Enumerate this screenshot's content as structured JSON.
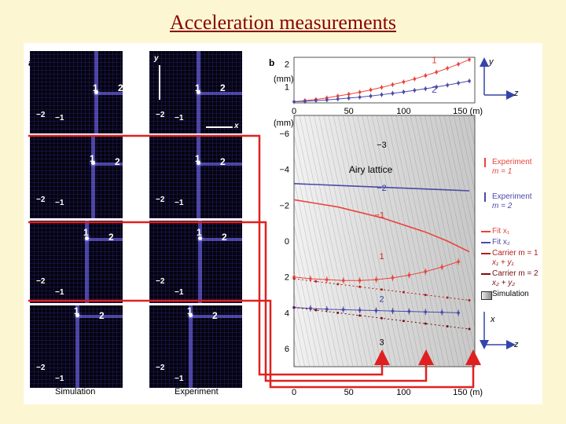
{
  "slide": {
    "title": "Acceleration measurements"
  },
  "panel_a": {
    "label": "a",
    "col_labels": [
      "Simulation",
      "Experiment"
    ],
    "axis_y": "y",
    "axis_x": "x",
    "orders": [
      "1",
      "2",
      "−2",
      "−1"
    ]
  },
  "panel_b": {
    "label": "b",
    "top_ylabel_unit": "(mm)",
    "top_yticks": [
      "2",
      "1"
    ],
    "top_xticks": [
      "0",
      "50",
      "100",
      "150 (m)"
    ],
    "main_ylabel_unit": "(mm)",
    "main_yticks": [
      "−6",
      "−4",
      "−2",
      "0",
      "2",
      "4",
      "6"
    ],
    "main_xticks": [
      "0",
      "50",
      "100",
      "150 (m)"
    ],
    "inside_labels": [
      "−3",
      "Airy lattice",
      "−2",
      "−1",
      "1",
      "2",
      "3"
    ],
    "top_series_labels": [
      "1",
      "2"
    ],
    "axis_icons": {
      "top_y": "y",
      "top_z": "z",
      "main_x": "x",
      "main_z": "z"
    }
  },
  "legend": [
    {
      "line1": "Experiment",
      "line2": "m = 1",
      "color": "#e8453c"
    },
    {
      "line1": "Experiment",
      "line2": "m = 2",
      "color": "#4a4aa8"
    },
    {
      "line1": "Fit x₁",
      "line2": "",
      "color": "#e8453c"
    },
    {
      "line1": "Fit x₂",
      "line2": "",
      "color": "#4a4aa8"
    },
    {
      "line1": "Carrier m = 1",
      "line2": "x₁ + y₁",
      "color": "#b0201a"
    },
    {
      "line1": "Carrier m = 2",
      "line2": "x₂ + y₂",
      "color": "#7a1010"
    },
    {
      "line1": "Simulation",
      "line2": "",
      "color": "#888888"
    }
  ],
  "chart_data": [
    {
      "type": "scatter",
      "title": "",
      "xlabel": "(m)",
      "ylabel": "(mm)",
      "xlim": [
        0,
        165
      ],
      "ylim": [
        0.3,
        2.3
      ],
      "series": [
        {
          "name": "1",
          "x": [
            0,
            10,
            20,
            30,
            40,
            50,
            60,
            70,
            80,
            90,
            100,
            110,
            120,
            130,
            140,
            150,
            160
          ],
          "y": [
            0.35,
            0.4,
            0.45,
            0.52,
            0.6,
            0.68,
            0.77,
            0.87,
            0.98,
            1.1,
            1.22,
            1.35,
            1.5,
            1.65,
            1.82,
            2.0,
            2.2
          ],
          "color": "#e8453c"
        },
        {
          "name": "2",
          "x": [
            0,
            10,
            20,
            30,
            40,
            50,
            60,
            70,
            80,
            90,
            100,
            110,
            120,
            130,
            140,
            150,
            160
          ],
          "y": [
            0.35,
            0.37,
            0.4,
            0.43,
            0.47,
            0.51,
            0.55,
            0.6,
            0.66,
            0.72,
            0.78,
            0.85,
            0.92,
            1.0,
            1.08,
            1.17,
            1.26
          ],
          "color": "#4a4aa8"
        }
      ]
    },
    {
      "type": "line",
      "title": "",
      "xlabel": "(m)",
      "ylabel": "(mm)",
      "xlim": [
        0,
        165
      ],
      "ylim": [
        -7,
        7
      ],
      "series": [
        {
          "name": "Fit x₁",
          "x": [
            0,
            20,
            40,
            60,
            80,
            100,
            120,
            140,
            160
          ],
          "y": [
            -2.3,
            -2.1,
            -1.9,
            -1.6,
            -1.3,
            -0.9,
            -0.5,
            0.0,
            0.6
          ],
          "color": "#e8453c"
        },
        {
          "name": "Fit x₂",
          "x": [
            0,
            20,
            40,
            60,
            80,
            100,
            120,
            140,
            160
          ],
          "y": [
            -3.2,
            -3.15,
            -3.1,
            -3.05,
            -3.0,
            -2.95,
            -2.9,
            -2.85,
            -2.8
          ],
          "color": "#4a4aa8"
        },
        {
          "name": "Experiment m = 1",
          "x": [
            0,
            15,
            30,
            45,
            60,
            75,
            90,
            105,
            120,
            135,
            150
          ],
          "y": [
            2.0,
            2.1,
            2.15,
            2.2,
            2.2,
            2.15,
            2.05,
            1.9,
            1.7,
            1.45,
            1.15
          ],
          "color": "#e8453c"
        },
        {
          "name": "Experiment m = 2",
          "x": [
            0,
            15,
            30,
            45,
            60,
            75,
            90,
            105,
            120,
            135,
            150
          ],
          "y": [
            3.7,
            3.75,
            3.8,
            3.82,
            3.85,
            3.87,
            3.9,
            3.92,
            3.95,
            3.97,
            4.0
          ],
          "color": "#4a4aa8"
        },
        {
          "name": "Carrier m = 1",
          "x": [
            0,
            20,
            40,
            60,
            80,
            100,
            120,
            140,
            160
          ],
          "y": [
            2.1,
            2.25,
            2.4,
            2.55,
            2.7,
            2.85,
            3.0,
            3.15,
            3.3
          ],
          "color": "#b0201a"
        },
        {
          "name": "Carrier m = 2",
          "x": [
            0,
            20,
            40,
            60,
            80,
            100,
            120,
            140,
            160
          ],
          "y": [
            3.7,
            3.85,
            4.0,
            4.15,
            4.3,
            4.45,
            4.6,
            4.75,
            4.9
          ],
          "color": "#7a1010"
        }
      ]
    }
  ]
}
